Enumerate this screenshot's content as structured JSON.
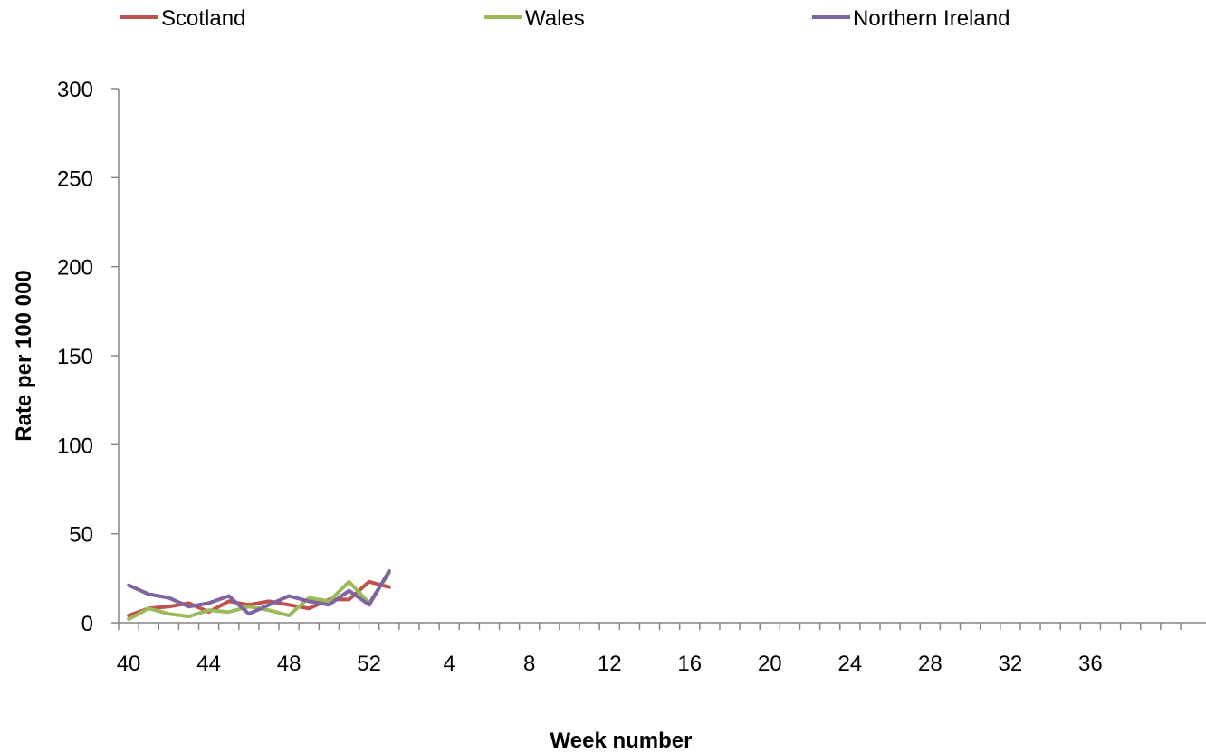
{
  "chart_data": {
    "type": "line",
    "title": "",
    "xlabel": "Week number",
    "ylabel": "Rate per 100 000",
    "ylim": [
      0,
      300
    ],
    "yticks": [
      0,
      50,
      100,
      150,
      200,
      250,
      300
    ],
    "grid": false,
    "legend_position": "top",
    "weeks": [
      40,
      41,
      42,
      43,
      44,
      45,
      46,
      47,
      48,
      49,
      50,
      51,
      52,
      53,
      1,
      2,
      3,
      4,
      5,
      6,
      7,
      8,
      9,
      10,
      11,
      12,
      13,
      14,
      15,
      16,
      17,
      18,
      19,
      20,
      21,
      22,
      23,
      24,
      25,
      26,
      27,
      28,
      29,
      30,
      31,
      32,
      33,
      34,
      35,
      36,
      37,
      38,
      39
    ],
    "x_tick_labels": [
      "40",
      "44",
      "48",
      "52",
      "4",
      "8",
      "12",
      "16",
      "20",
      "24",
      "28",
      "32",
      "36"
    ],
    "series": [
      {
        "name": "Scotland",
        "color": "#C0504D",
        "values": [
          4,
          8,
          9,
          11,
          6,
          12,
          10,
          12,
          10,
          8,
          13,
          13,
          23,
          20
        ]
      },
      {
        "name": "Wales",
        "color": "#9BBB59",
        "values": [
          2,
          8,
          5,
          3.5,
          7,
          6,
          9,
          7,
          4,
          14,
          12,
          23,
          11,
          28
        ]
      },
      {
        "name": "Northern Ireland",
        "color": "#8064A2",
        "values": [
          21,
          16,
          14,
          9,
          11,
          15,
          5,
          10,
          15,
          12,
          10,
          18,
          10,
          29
        ]
      }
    ]
  }
}
